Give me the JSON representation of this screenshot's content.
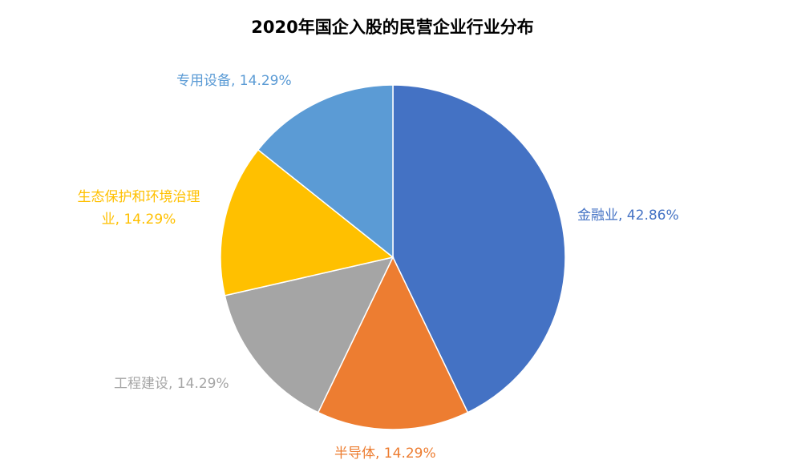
{
  "chart_data": {
    "type": "pie",
    "title": "2020年国企入股的民营企业行业分布",
    "series": [
      {
        "name": "金融业",
        "value": 42.86,
        "value_label": "42.86%",
        "color": "#4472C4"
      },
      {
        "name": "半导体",
        "value": 14.29,
        "value_label": "14.29%",
        "color": "#ED7D31"
      },
      {
        "name": "工程建设",
        "value": 14.29,
        "value_label": "14.29%",
        "color": "#A5A5A5"
      },
      {
        "name": "生态保护和环境治理业",
        "value": 14.29,
        "value_label": "14.29%",
        "color": "#FFC000"
      },
      {
        "name": "专用设备",
        "value": 14.29,
        "value_label": "14.29%",
        "color": "#5B9BD5"
      }
    ],
    "labels": [
      {
        "text": "金融业, 42.86%"
      },
      {
        "text": "半导体, 14.29%"
      },
      {
        "text": "工程建设, 14.29%"
      },
      {
        "line1": "生态保护和环境治理",
        "line2": "业, 14.29%"
      },
      {
        "text": "专用设备, 14.29%"
      }
    ],
    "start_direction": "top",
    "direction": "clockwise",
    "legend": "none"
  }
}
